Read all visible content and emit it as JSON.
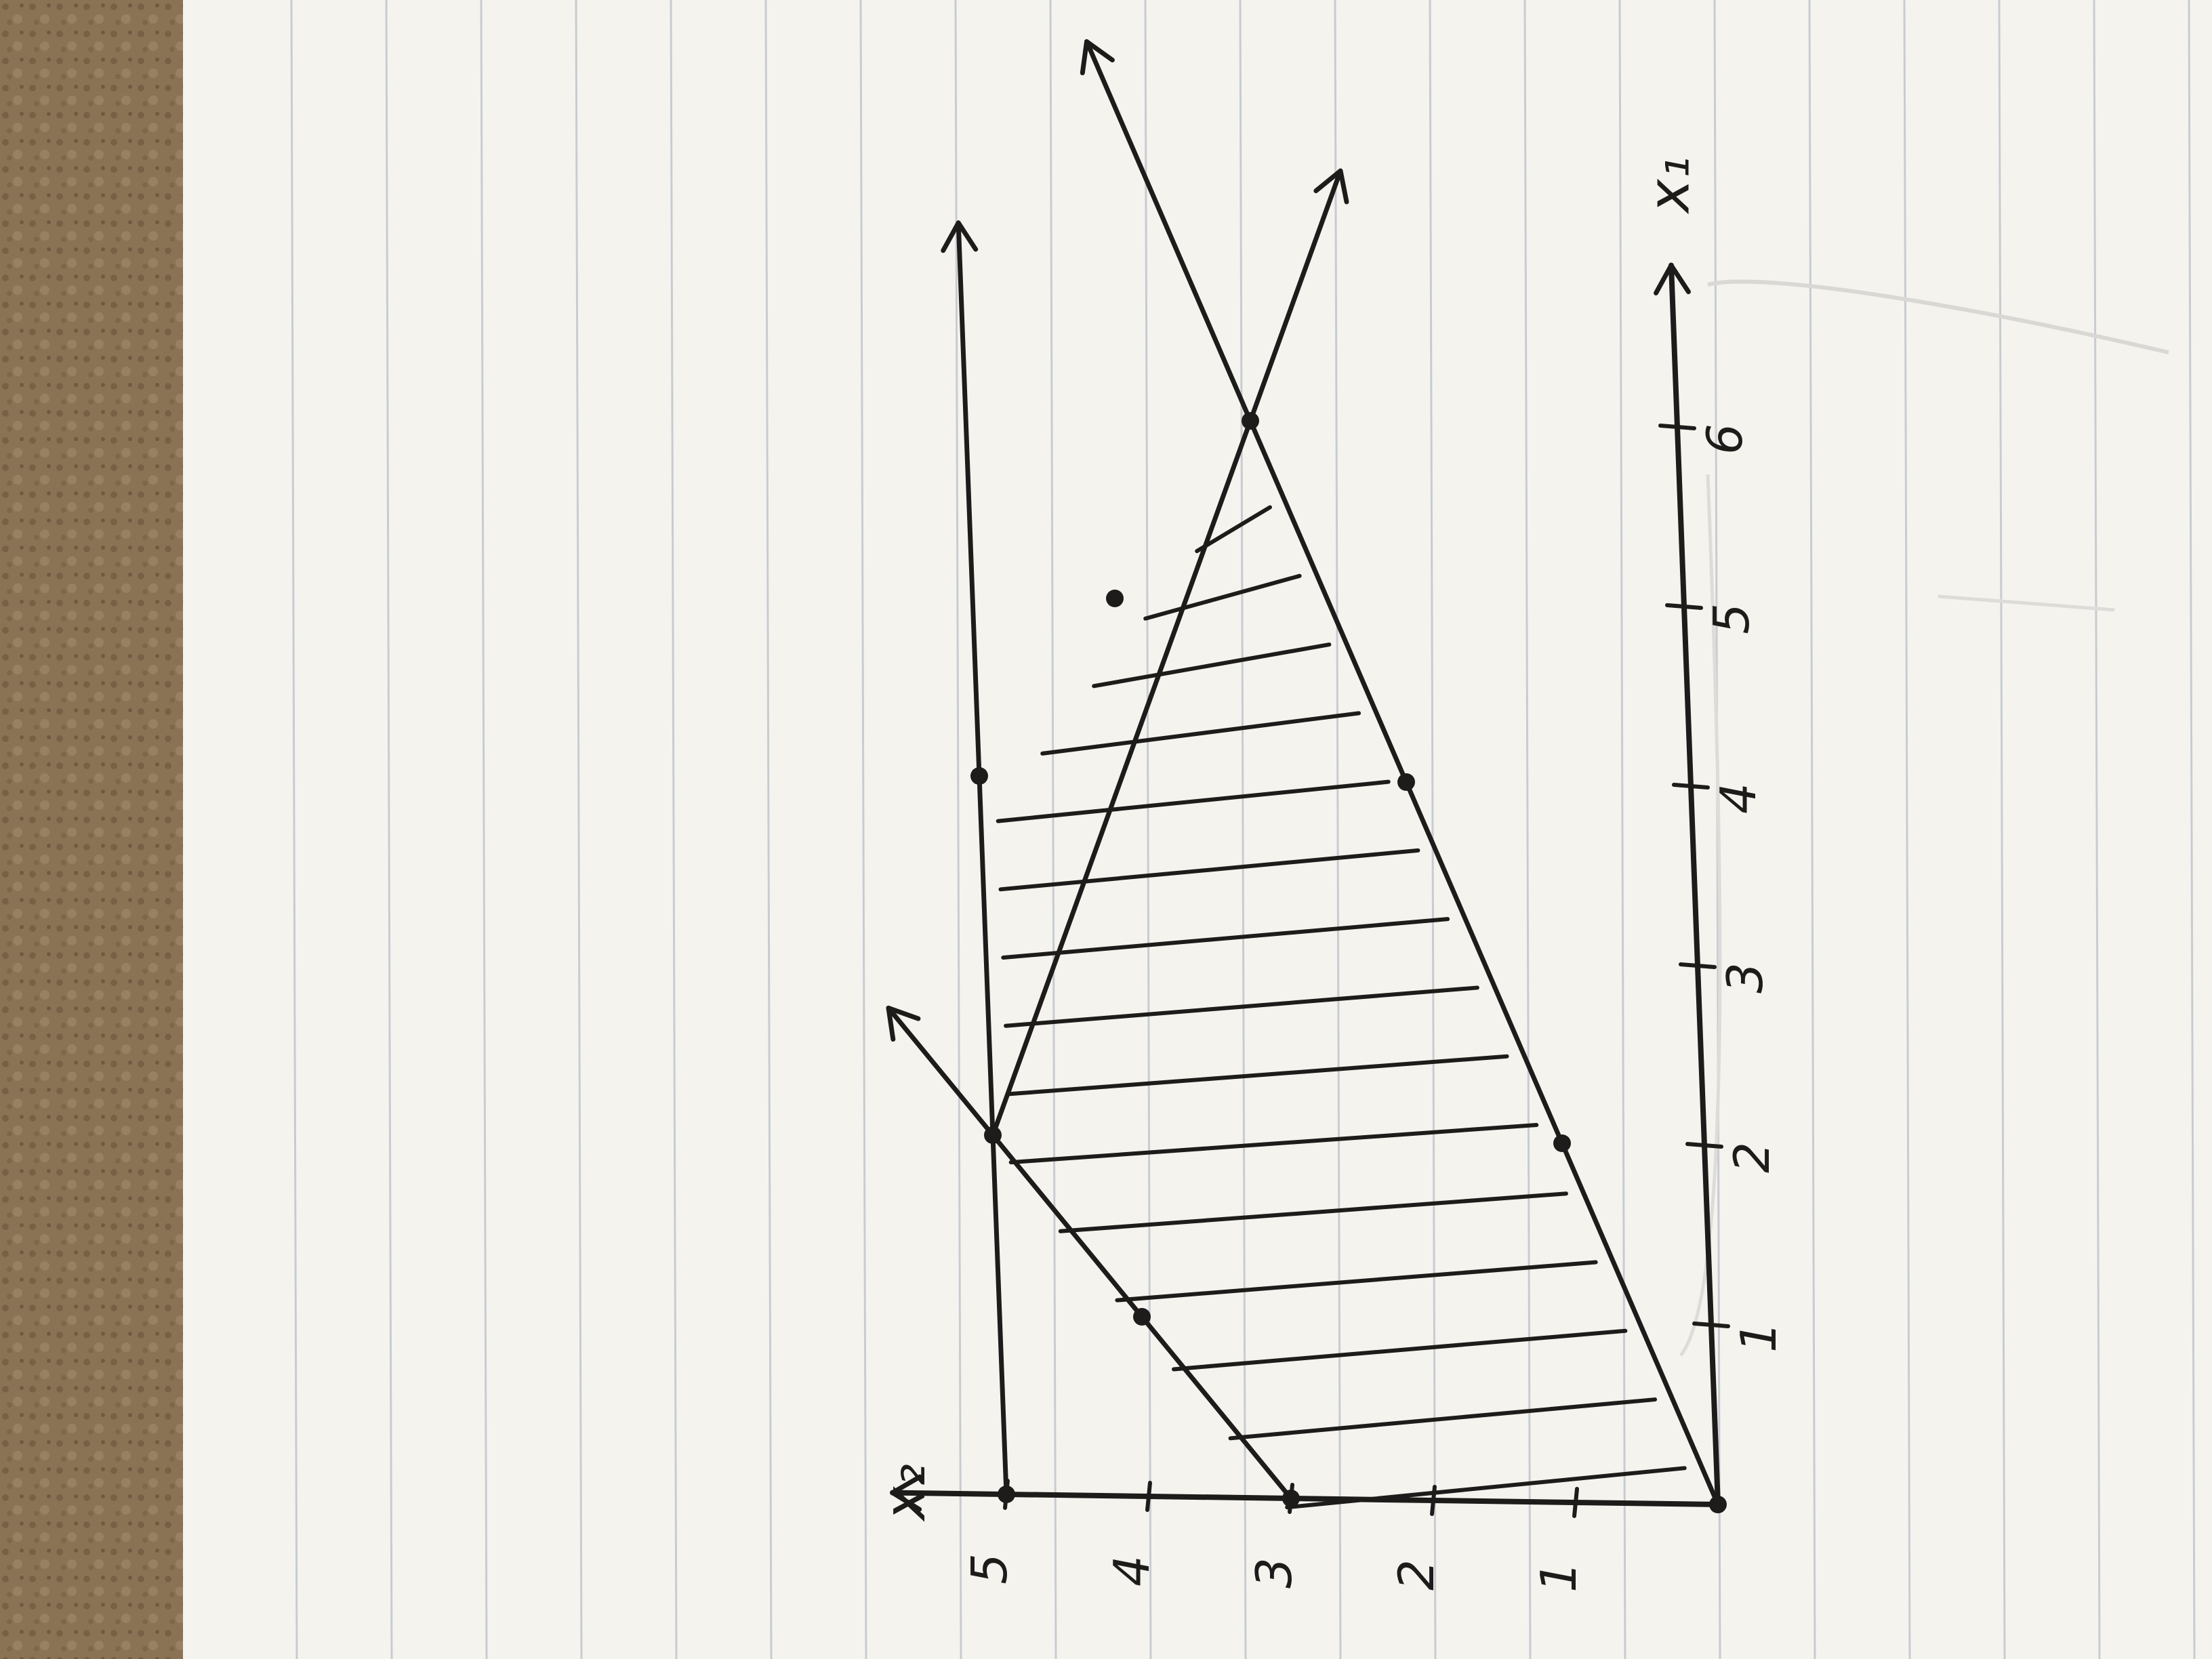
{
  "sketch": {
    "description_free": true,
    "axes": {
      "horizontal_axis_label": "x₁",
      "vertical_axis_label": "x₂",
      "horizontal_ticks": [
        "1",
        "2",
        "3",
        "4",
        "5",
        "6"
      ],
      "vertical_ticks": [
        "1",
        "2",
        "3",
        "4",
        "5"
      ]
    },
    "constraint_lines": [
      {
        "from": [
          0,
          3
        ],
        "to": [
          2,
          5
        ]
      },
      {
        "from": [
          0,
          0
        ],
        "to": [
          6,
          3
        ]
      },
      {
        "from": [
          0,
          5
        ],
        "to": [
          6,
          5
        ]
      },
      {
        "from": [
          2,
          5
        ],
        "to": [
          6,
          3
        ]
      }
    ],
    "marked_points": [
      [
        0,
        0
      ],
      [
        0,
        3
      ],
      [
        0,
        5
      ],
      [
        1,
        4
      ],
      [
        2,
        1
      ],
      [
        2,
        5
      ],
      [
        4,
        2
      ],
      [
        4,
        5
      ],
      [
        5,
        4
      ],
      [
        6,
        3
      ]
    ],
    "shaded_region": "between the lines, right of the x₂ axis",
    "colors": {
      "paper": "#f5f3ee",
      "ink": "#1e1c1a",
      "rule_lines": "#c7ccd2",
      "desk": "#8a7355"
    }
  }
}
